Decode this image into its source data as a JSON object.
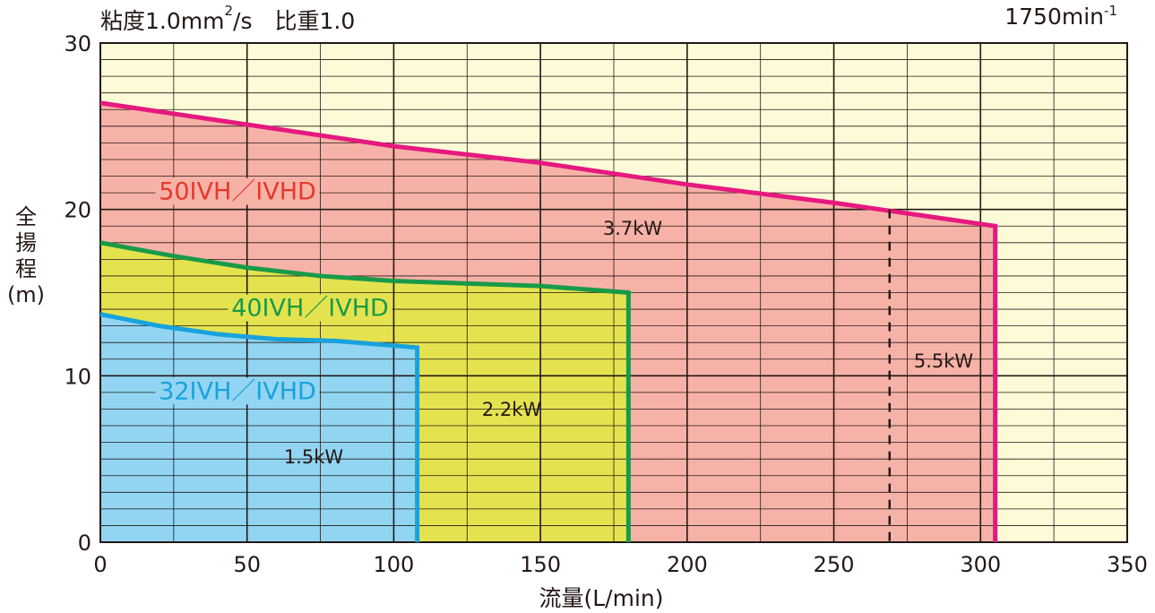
{
  "header": {
    "left": "粘度1.0mm",
    "left_sup": "2",
    "left_rest": "/s　比重1.0",
    "right": "1750min",
    "right_sup": "-1"
  },
  "y_axis_label": {
    "chars": [
      "全",
      "揚",
      "程"
    ],
    "unit": "(m)"
  },
  "x_axis_label": "流量(L/min)",
  "chart_data": {
    "type": "area",
    "xlabel": "流量(L/min)",
    "ylabel": "全揚程(m)",
    "xlim": [
      0,
      350
    ],
    "ylim": [
      0,
      30
    ],
    "x_ticks": [
      0,
      50,
      100,
      150,
      200,
      250,
      300,
      350
    ],
    "y_ticks": [
      0,
      10,
      20,
      30
    ],
    "grid": true,
    "background_color": "#fdfbd7",
    "grid_color": "#231815",
    "regions": [
      {
        "name": "50IVH／IVHD",
        "power_label": "3.7kW",
        "fill": "#f7b2a8",
        "stroke": "#e5197f",
        "label_color": "#e83828",
        "curve": [
          [
            0,
            26.4
          ],
          [
            50,
            25.1
          ],
          [
            100,
            23.8
          ],
          [
            150,
            22.8
          ],
          [
            200,
            21.5
          ],
          [
            250,
            20.4
          ],
          [
            305,
            19.0
          ]
        ],
        "max_flow": 305
      },
      {
        "name": "40IVH／IVHD",
        "power_label": "2.2kW",
        "fill": "#e4e34f",
        "stroke": "#1a9a48",
        "label_color": "#1a9a48",
        "curve": [
          [
            0,
            18.0
          ],
          [
            25,
            17.2
          ],
          [
            50,
            16.5
          ],
          [
            75,
            16.0
          ],
          [
            100,
            15.7
          ],
          [
            150,
            15.4
          ],
          [
            180,
            15.0
          ]
        ],
        "max_flow": 180
      },
      {
        "name": "32IVH／IVHD",
        "power_label": "1.5kW",
        "fill": "#91d5f2",
        "stroke": "#19a2dc",
        "label_color": "#19a2dc",
        "curve": [
          [
            0,
            13.7
          ],
          [
            20,
            13.0
          ],
          [
            40,
            12.5
          ],
          [
            60,
            12.2
          ],
          [
            80,
            12.1
          ],
          [
            108,
            11.7
          ]
        ],
        "max_flow": 108
      }
    ],
    "dashed_divider": {
      "x": 269,
      "y_top": 20.0,
      "label_right": "5.5kW",
      "label_left": "3.7kW"
    }
  }
}
